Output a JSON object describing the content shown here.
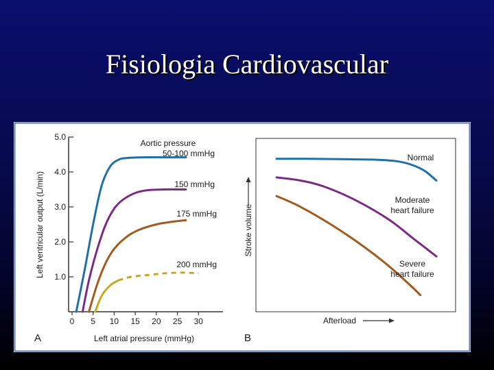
{
  "slide": {
    "title": "Fisiologia Cardiovascular"
  },
  "chart_data": [
    {
      "panel": "A",
      "type": "line",
      "xlabel": "Left atrial pressure (mmHg)",
      "ylabel": "Left ventricular output (L/min)",
      "xlim": [
        0,
        35
      ],
      "ylim": [
        0,
        5.0
      ],
      "xticks": [
        0,
        5,
        10,
        15,
        20,
        25,
        30
      ],
      "yticks": [
        1.0,
        2.0,
        3.0,
        4.0,
        5.0
      ],
      "series_heading": "Aortic pressure",
      "series": [
        {
          "name": "50-100 mmHg",
          "color": "#1f6fa8",
          "dashed": false,
          "points": [
            [
              1,
              0
            ],
            [
              3,
              1.2
            ],
            [
              5,
              2.5
            ],
            [
              7,
              3.6
            ],
            [
              9,
              4.15
            ],
            [
              11,
              4.35
            ],
            [
              13,
              4.4
            ],
            [
              17,
              4.42
            ],
            [
              22,
              4.42
            ],
            [
              27,
              4.42
            ]
          ]
        },
        {
          "name": "150 mmHg",
          "color": "#7b2a86",
          "dashed": false,
          "points": [
            [
              2.5,
              0
            ],
            [
              4,
              0.9
            ],
            [
              6,
              1.8
            ],
            [
              8,
              2.5
            ],
            [
              10,
              2.95
            ],
            [
              12,
              3.2
            ],
            [
              15,
              3.4
            ],
            [
              18,
              3.48
            ],
            [
              22,
              3.5
            ],
            [
              27,
              3.5
            ]
          ]
        },
        {
          "name": "175 mmHg",
          "color": "#a35a1c",
          "dashed": false,
          "points": [
            [
              4,
              0
            ],
            [
              6,
              0.8
            ],
            [
              8,
              1.4
            ],
            [
              10,
              1.8
            ],
            [
              13,
              2.15
            ],
            [
              16,
              2.35
            ],
            [
              20,
              2.5
            ],
            [
              24,
              2.58
            ],
            [
              27,
              2.62
            ]
          ]
        },
        {
          "name": "200 mmHg",
          "color": "#c9a820",
          "dashed": false,
          "points": [
            [
              5.5,
              0
            ],
            [
              7,
              0.45
            ],
            [
              9,
              0.75
            ],
            [
              11,
              0.9
            ]
          ]
        },
        {
          "name": "200 mmHg (extrapolated)",
          "color": "#c9a820",
          "dashed": true,
          "legend": false,
          "points": [
            [
              11,
              0.9
            ],
            [
              14,
              1.0
            ],
            [
              18,
              1.05
            ],
            [
              22,
              1.1
            ],
            [
              26,
              1.12
            ],
            [
              30,
              1.1
            ]
          ]
        }
      ]
    },
    {
      "panel": "B",
      "type": "line",
      "xlabel": "Afterload",
      "ylabel": "Stroke volume",
      "xlim": [
        0,
        10
      ],
      "ylim": [
        0,
        10
      ],
      "series": [
        {
          "name": "Normal",
          "color": "#1f6fa8",
          "points": [
            [
              0,
              9.3
            ],
            [
              2,
              9.3
            ],
            [
              4,
              9.28
            ],
            [
              6,
              9.25
            ],
            [
              7.5,
              9.15
            ],
            [
              8.5,
              8.9
            ],
            [
              9.3,
              8.5
            ],
            [
              10,
              7.9
            ]
          ]
        },
        {
          "name": "Moderate heart failure",
          "color": "#7b2a86",
          "points": [
            [
              0,
              8.1
            ],
            [
              1.5,
              7.9
            ],
            [
              3,
              7.5
            ],
            [
              5,
              6.6
            ],
            [
              7,
              5.4
            ],
            [
              8.5,
              4.2
            ],
            [
              10,
              3.0
            ]
          ]
        },
        {
          "name": "Severe heart failure",
          "color": "#a35a1c",
          "points": [
            [
              0,
              6.9
            ],
            [
              1.5,
              6.2
            ],
            [
              3.5,
              5.0
            ],
            [
              5.5,
              3.6
            ],
            [
              7,
              2.4
            ],
            [
              8.3,
              1.2
            ],
            [
              9,
              0.5
            ]
          ]
        }
      ]
    }
  ],
  "labels": {
    "panel_a": "A",
    "panel_b": "B",
    "a_heading": "Aortic pressure",
    "a_s1": "50-100 mmHg",
    "a_s2": "150 mmHg",
    "a_s3": "175 mmHg",
    "a_s4": "200 mmHg",
    "b_normal": "Normal",
    "b_moderate_1": "Moderate",
    "b_moderate_2": "heart failure",
    "b_severe_1": "Severe",
    "b_severe_2": "heart failure"
  },
  "colors": {
    "frame": "#5a78a8",
    "axis": "#333333",
    "background_top": "#0a0e6e"
  }
}
